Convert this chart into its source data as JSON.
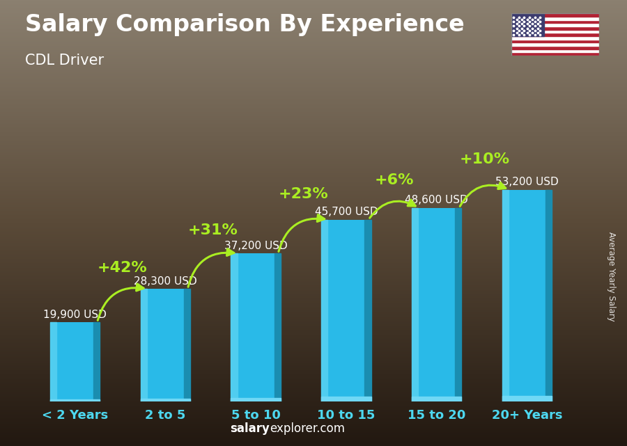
{
  "categories": [
    "< 2 Years",
    "2 to 5",
    "5 to 10",
    "10 to 15",
    "15 to 20",
    "20+ Years"
  ],
  "values": [
    19900,
    28300,
    37200,
    45700,
    48600,
    53200
  ],
  "salary_labels": [
    "19,900 USD",
    "28,300 USD",
    "37,200 USD",
    "45,700 USD",
    "48,600 USD",
    "53,200 USD"
  ],
  "pct_labels": [
    "+42%",
    "+31%",
    "+23%",
    "+6%",
    "+10%"
  ],
  "bar_color_main": "#29BAE8",
  "bar_color_light": "#50CDEF",
  "bar_color_dark": "#1A8DB0",
  "pct_color": "#AAEE22",
  "salary_label_color": "#FFFFFF",
  "xtick_color": "#4DD8F0",
  "title": "Salary Comparison By Experience",
  "subtitle": "CDL Driver",
  "title_color": "#FFFFFF",
  "subtitle_color": "#FFFFFF",
  "bg_color_top": "#8B8070",
  "bg_color_bottom": "#2A2018",
  "footer_bold": "salary",
  "footer_regular": "explorer.com",
  "ylabel_text": "Average Yearly Salary",
  "ylim": [
    0,
    65000
  ],
  "pct_fontsize": 16,
  "salary_fontsize": 11,
  "title_fontsize": 24,
  "subtitle_fontsize": 15
}
